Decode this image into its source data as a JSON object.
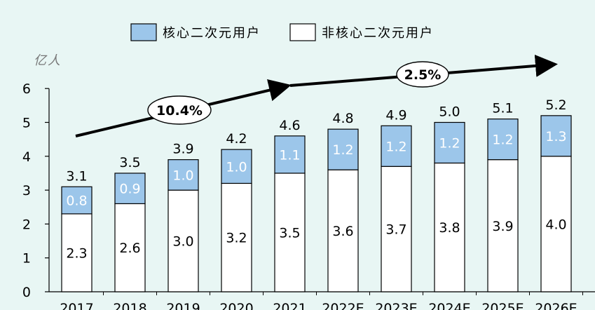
{
  "chart_data": {
    "type": "bar",
    "stacked": true,
    "ylabel": "亿人",
    "ylim": [
      0,
      6
    ],
    "yticks": [
      0,
      1,
      2,
      3,
      4,
      5,
      6
    ],
    "categories": [
      "2017",
      "2018",
      "2019",
      "2020",
      "2021",
      "2022E",
      "2023E",
      "2024E",
      "2025E",
      "2026E"
    ],
    "series": [
      {
        "name": "非核心二次元用户",
        "values": [
          2.3,
          2.6,
          3.0,
          3.2,
          3.5,
          3.6,
          3.7,
          3.8,
          3.9,
          4.0
        ],
        "color": "#ffffff"
      },
      {
        "name": "核心二次元用户",
        "values": [
          0.8,
          0.9,
          1.0,
          1.0,
          1.1,
          1.2,
          1.2,
          1.2,
          1.2,
          1.3
        ],
        "color": "#9cc6ea"
      }
    ],
    "totals": [
      3.1,
      3.5,
      3.9,
      4.2,
      4.6,
      4.8,
      4.9,
      5.0,
      5.1,
      5.2
    ],
    "annotations": [
      {
        "text": "10.4%",
        "from": "2017",
        "to": "2021"
      },
      {
        "text": "2.5%",
        "from": "2021",
        "to": "2026E"
      }
    ],
    "legend": "top",
    "grid": false
  }
}
